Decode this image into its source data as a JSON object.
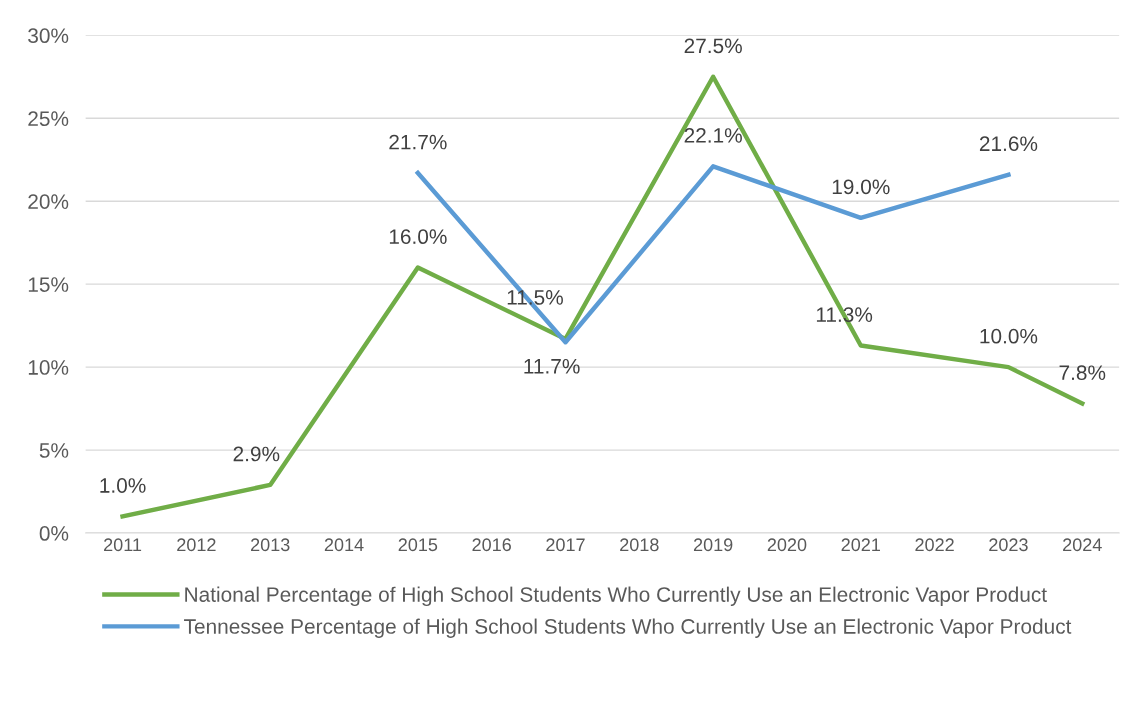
{
  "chart_data": {
    "type": "line",
    "categories": [
      "2011",
      "2012",
      "2013",
      "2014",
      "2015",
      "2016",
      "2017",
      "2018",
      "2019",
      "2020",
      "2021",
      "2022",
      "2023",
      "2024"
    ],
    "series": [
      {
        "name": "National Percentage of High School Students Who Currently Use an Electronic Vapor Product",
        "color": "#70ad47",
        "values": [
          1.0,
          null,
          2.9,
          null,
          16.0,
          null,
          11.7,
          null,
          27.5,
          null,
          11.3,
          null,
          10.0,
          7.8
        ],
        "value_labels": [
          "1.0%",
          null,
          "2.9%",
          null,
          "16.0%",
          null,
          "11.7%",
          null,
          "27.5%",
          null,
          "11.3%",
          null,
          "10.0%",
          "7.8%"
        ]
      },
      {
        "name": "Tennessee Percentage of High School Students Who Currently Use an Electronic Vapor Product",
        "color": "#5b9bd5",
        "values": [
          null,
          null,
          null,
          null,
          21.7,
          null,
          11.5,
          null,
          22.1,
          null,
          19.0,
          null,
          21.6,
          null
        ],
        "value_labels": [
          null,
          null,
          null,
          null,
          "21.7%",
          null,
          "11.5%",
          null,
          "22.1%",
          null,
          "19.0%",
          null,
          "21.6%",
          null
        ]
      }
    ],
    "ylim": [
      0,
      30
    ],
    "yticks": [
      {
        "value": 0,
        "label": "0%"
      },
      {
        "value": 5,
        "label": "5%"
      },
      {
        "value": 10,
        "label": "10%"
      },
      {
        "value": 15,
        "label": "15%"
      },
      {
        "value": 20,
        "label": "20%"
      },
      {
        "value": 25,
        "label": "25%"
      },
      {
        "value": 30,
        "label": "30%"
      }
    ],
    "grid": "y",
    "legend": "bottom",
    "marker": "none",
    "line_style": "solid"
  }
}
